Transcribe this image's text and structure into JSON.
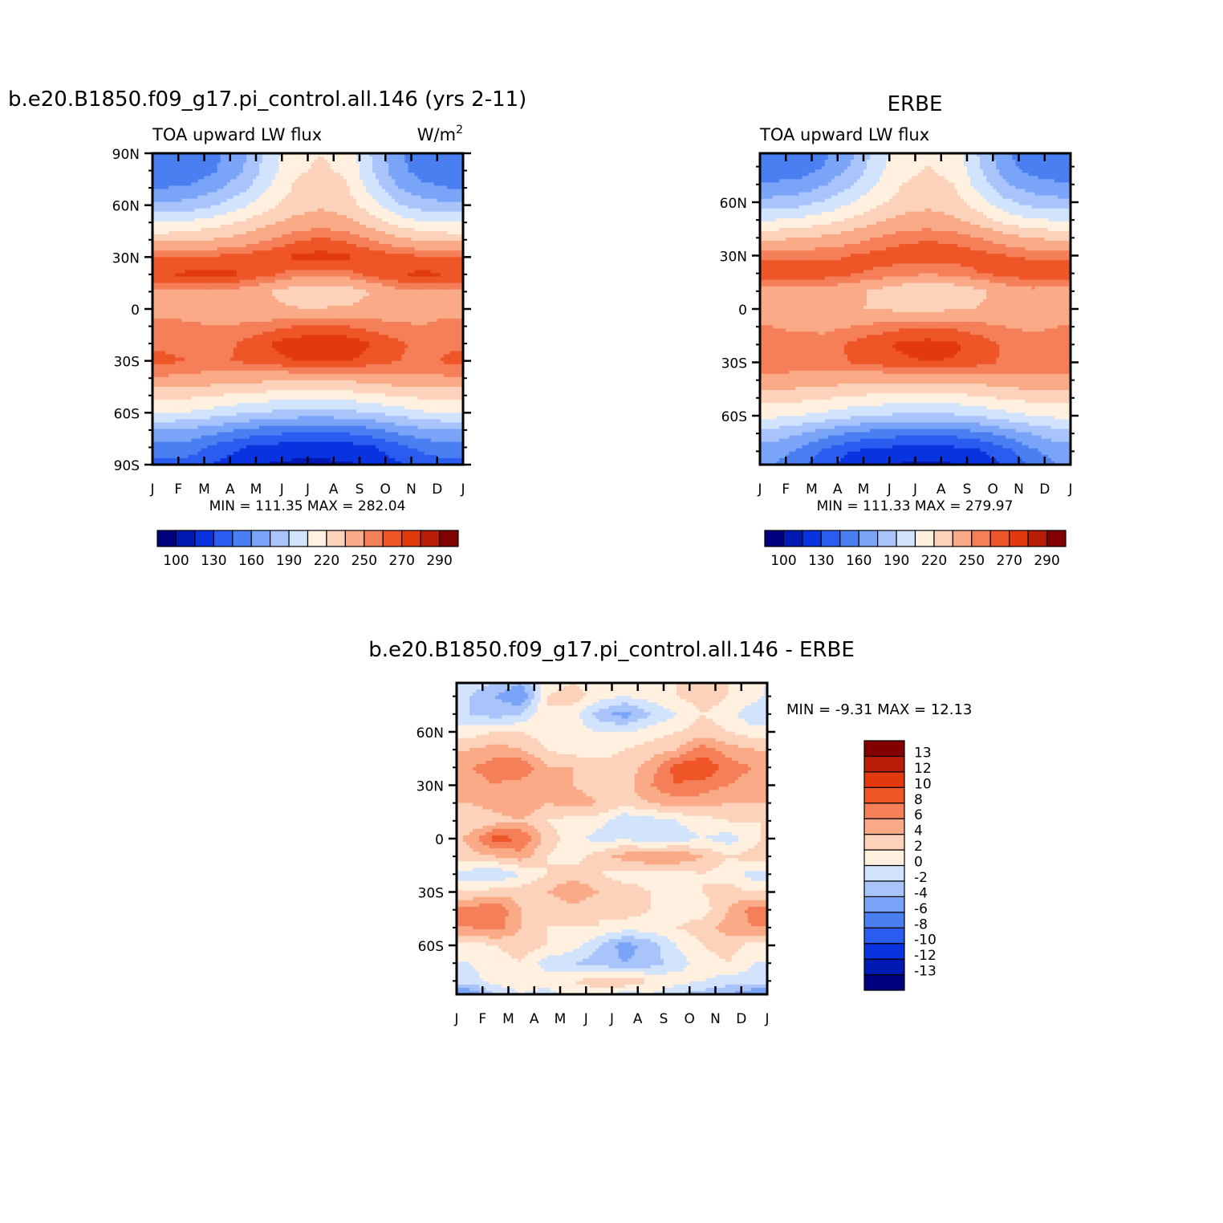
{
  "chart_data": [
    {
      "type": "heatmap",
      "title": "b.e20.B1850.f09_g17.pi_control.all.146 (yrs 2-11)",
      "subtitle_left": "TOA upward LW flux",
      "units": "W/m",
      "units_sup": "2",
      "x_tick_labels": [
        "J",
        "F",
        "M",
        "A",
        "M",
        "J",
        "J",
        "A",
        "S",
        "O",
        "N",
        "D",
        "J"
      ],
      "y_tick_labels": [
        "90N",
        "60N",
        "30N",
        "0",
        "30S",
        "60S",
        "90S"
      ],
      "y_tick_values": [
        90,
        60,
        30,
        0,
        -30,
        -60,
        -90
      ],
      "ylim": [
        -90,
        90
      ],
      "min_max_text": "MIN = 111.35 MAX = 282.04",
      "min": 111.35,
      "max": 282.04,
      "colorbar": {
        "orientation": "horizontal",
        "levels": [
          100,
          115,
          130,
          145,
          160,
          175,
          190,
          205,
          220,
          235,
          250,
          260,
          270,
          280,
          290
        ],
        "labels": [
          "100",
          "130",
          "160",
          "190",
          "220",
          "250",
          "270",
          "290"
        ],
        "colors": [
          "#00007f",
          "#0019b3",
          "#0a33e0",
          "#2a5cf0",
          "#4a7ff2",
          "#7aa4f7",
          "#a8c4fa",
          "#d1e3fd",
          "#fff0e0",
          "#fcd2bb",
          "#faaa87",
          "#f47f59",
          "#ee5527",
          "#e23a0d",
          "#b81e05",
          "#820000"
        ]
      },
      "field": {
        "lat": [
          -90,
          -80,
          -70,
          -60,
          -50,
          -40,
          -30,
          -20,
          -10,
          0,
          10,
          20,
          30,
          40,
          50,
          60,
          70,
          80,
          90
        ],
        "months": [
          "J",
          "F",
          "M",
          "A",
          "M",
          "J",
          "J",
          "A",
          "S",
          "O",
          "N",
          "D"
        ],
        "values": [
          [
            140,
            138,
            128,
            118,
            114,
            112,
            112,
            113,
            118,
            128,
            136,
            140
          ],
          [
            155,
            152,
            140,
            130,
            125,
            122,
            121,
            123,
            128,
            140,
            150,
            155
          ],
          [
            175,
            172,
            165,
            158,
            152,
            150,
            149,
            150,
            156,
            165,
            172,
            175
          ],
          [
            205,
            203,
            198,
            192,
            188,
            185,
            184,
            186,
            190,
            197,
            203,
            205
          ],
          [
            225,
            223,
            220,
            217,
            214,
            212,
            212,
            213,
            217,
            221,
            224,
            225
          ],
          [
            248,
            246,
            244,
            242,
            240,
            240,
            240,
            240,
            242,
            246,
            248,
            248
          ],
          [
            262,
            260,
            258,
            262,
            266,
            270,
            272,
            271,
            266,
            260,
            258,
            262
          ],
          [
            258,
            255,
            255,
            262,
            270,
            276,
            279,
            277,
            270,
            262,
            256,
            258
          ],
          [
            254,
            252,
            250,
            252,
            256,
            260,
            262,
            260,
            256,
            252,
            250,
            254
          ],
          [
            246,
            244,
            242,
            240,
            238,
            236,
            236,
            237,
            240,
            244,
            246,
            246
          ],
          [
            248,
            248,
            248,
            244,
            236,
            226,
            222,
            226,
            236,
            246,
            248,
            248
          ],
          [
            270,
            272,
            274,
            270,
            262,
            256,
            254,
            256,
            264,
            270,
            272,
            270
          ],
          [
            262,
            262,
            262,
            264,
            268,
            272,
            274,
            272,
            268,
            264,
            262,
            262
          ],
          [
            230,
            232,
            236,
            242,
            250,
            258,
            262,
            258,
            250,
            240,
            232,
            230
          ],
          [
            205,
            208,
            214,
            222,
            232,
            240,
            244,
            240,
            228,
            214,
            206,
            205
          ],
          [
            178,
            182,
            190,
            202,
            216,
            228,
            232,
            228,
            210,
            192,
            182,
            178
          ],
          [
            160,
            162,
            172,
            186,
            205,
            222,
            226,
            222,
            198,
            175,
            164,
            160
          ],
          [
            150,
            150,
            160,
            175,
            198,
            218,
            222,
            218,
            190,
            165,
            152,
            150
          ],
          [
            148,
            148,
            158,
            172,
            196,
            216,
            220,
            216,
            188,
            162,
            150,
            148
          ]
        ]
      }
    },
    {
      "type": "heatmap",
      "title": "ERBE",
      "subtitle_left": "TOA upward LW flux",
      "x_tick_labels": [
        "J",
        "F",
        "M",
        "A",
        "M",
        "J",
        "J",
        "A",
        "S",
        "O",
        "N",
        "D",
        "J"
      ],
      "y_tick_labels": [
        "60N",
        "30N",
        "0",
        "30S",
        "60S"
      ],
      "y_tick_values": [
        60,
        30,
        0,
        -30,
        -60
      ],
      "ylim": [
        -87.5,
        87.5
      ],
      "min_max_text": "MIN = 111.33 MAX = 279.97",
      "min": 111.33,
      "max": 279.97,
      "colorbar": {
        "orientation": "horizontal",
        "levels": [
          100,
          115,
          130,
          145,
          160,
          175,
          190,
          205,
          220,
          235,
          250,
          260,
          270,
          280,
          290
        ],
        "labels": [
          "100",
          "130",
          "160",
          "190",
          "220",
          "250",
          "270",
          "290"
        ],
        "colors": [
          "#00007f",
          "#0019b3",
          "#0a33e0",
          "#2a5cf0",
          "#4a7ff2",
          "#7aa4f7",
          "#a8c4fa",
          "#d1e3fd",
          "#fff0e0",
          "#fcd2bb",
          "#faaa87",
          "#f47f59",
          "#ee5527",
          "#e23a0d",
          "#b81e05",
          "#820000"
        ]
      },
      "field": {
        "lat": [
          -87.5,
          -80,
          -70,
          -60,
          -50,
          -40,
          -30,
          -20,
          -10,
          0,
          10,
          20,
          30,
          40,
          50,
          60,
          70,
          80,
          87.5
        ],
        "months": [
          "J",
          "F",
          "M",
          "A",
          "M",
          "J",
          "J",
          "A",
          "S",
          "O",
          "N",
          "D"
        ],
        "values": [
          [
            160,
            150,
            135,
            122,
            116,
            114,
            113,
            114,
            120,
            132,
            148,
            160
          ],
          [
            168,
            158,
            142,
            130,
            125,
            122,
            121,
            123,
            128,
            140,
            156,
            168
          ],
          [
            182,
            176,
            166,
            158,
            152,
            150,
            149,
            150,
            156,
            165,
            176,
            182
          ],
          [
            208,
            205,
            200,
            194,
            190,
            187,
            186,
            188,
            192,
            199,
            205,
            208
          ],
          [
            226,
            224,
            221,
            218,
            215,
            213,
            213,
            214,
            218,
            222,
            225,
            226
          ],
          [
            246,
            244,
            242,
            240,
            238,
            238,
            238,
            238,
            240,
            244,
            246,
            246
          ],
          [
            258,
            256,
            256,
            260,
            264,
            268,
            270,
            269,
            264,
            258,
            256,
            258
          ],
          [
            255,
            254,
            255,
            262,
            268,
            272,
            274,
            272,
            266,
            258,
            254,
            255
          ],
          [
            250,
            248,
            247,
            250,
            254,
            258,
            260,
            258,
            254,
            250,
            248,
            250
          ],
          [
            242,
            240,
            238,
            236,
            234,
            232,
            232,
            233,
            236,
            240,
            242,
            242
          ],
          [
            246,
            245,
            244,
            240,
            232,
            224,
            220,
            224,
            232,
            242,
            246,
            246
          ],
          [
            266,
            268,
            266,
            262,
            258,
            254,
            252,
            254,
            260,
            264,
            268,
            266
          ],
          [
            258,
            258,
            258,
            260,
            264,
            266,
            268,
            266,
            264,
            260,
            258,
            258
          ],
          [
            232,
            234,
            238,
            244,
            250,
            256,
            258,
            256,
            250,
            242,
            234,
            232
          ],
          [
            205,
            208,
            214,
            222,
            232,
            240,
            242,
            238,
            228,
            214,
            206,
            205
          ],
          [
            180,
            184,
            192,
            204,
            216,
            226,
            230,
            226,
            210,
            194,
            184,
            180
          ],
          [
            162,
            164,
            174,
            188,
            205,
            220,
            224,
            220,
            198,
            176,
            166,
            162
          ],
          [
            150,
            150,
            160,
            176,
            198,
            216,
            220,
            216,
            190,
            166,
            152,
            150
          ],
          [
            148,
            148,
            158,
            172,
            196,
            214,
            218,
            214,
            188,
            162,
            150,
            148
          ]
        ]
      }
    },
    {
      "type": "heatmap",
      "title": "b.e20.B1850.f09_g17.pi_control.all.146 - ERBE",
      "x_tick_labels": [
        "J",
        "F",
        "M",
        "A",
        "M",
        "J",
        "J",
        "A",
        "S",
        "O",
        "N",
        "D",
        "J"
      ],
      "y_tick_labels": [
        "60N",
        "30N",
        "0",
        "30S",
        "60S"
      ],
      "y_tick_values": [
        60,
        30,
        0,
        -30,
        -60
      ],
      "ylim": [
        -87.5,
        87.5
      ],
      "min_max_text": "MIN = -9.31 MAX = 12.13",
      "min": -9.31,
      "max": 12.13,
      "colorbar": {
        "orientation": "vertical",
        "levels": [
          -13,
          -12,
          -10,
          -8,
          -6,
          -4,
          -2,
          0,
          2,
          4,
          6,
          8,
          10,
          12,
          13
        ],
        "labels": [
          "13",
          "12",
          "10",
          "8",
          "6",
          "4",
          "2",
          "0",
          "-2",
          "-4",
          "-6",
          "-8",
          "-10",
          "-12",
          "-13"
        ],
        "colors": [
          "#00007f",
          "#0019b3",
          "#0a33e0",
          "#2a5cf0",
          "#4a7ff2",
          "#7aa4f7",
          "#a8c4fa",
          "#d1e3fd",
          "#fff0e0",
          "#fcd2bb",
          "#faaa87",
          "#f47f59",
          "#ee5527",
          "#e23a0d",
          "#b81e05",
          "#820000"
        ]
      },
      "field": {
        "lat": [
          -87.5,
          -80,
          -70,
          -60,
          -50,
          -40,
          -30,
          -20,
          -10,
          0,
          10,
          20,
          30,
          40,
          50,
          60,
          70,
          80,
          87.5
        ],
        "months": [
          "J",
          "F",
          "M",
          "A",
          "M",
          "J",
          "J",
          "A",
          "S",
          "O",
          "N",
          "D"
        ],
        "values": [
          [
            -6,
            -2,
            0,
            -1,
            1,
            1,
            -1,
            0,
            -2,
            -3,
            -4,
            -6
          ],
          [
            -1,
            1,
            1,
            1,
            2,
            3,
            4,
            2,
            1,
            0,
            -1,
            -1
          ],
          [
            0,
            1,
            2,
            -1,
            -2,
            -3,
            -4,
            -3,
            -1,
            1,
            2,
            0
          ],
          [
            1,
            2,
            3,
            2,
            1,
            -2,
            -5,
            -3,
            0,
            2,
            3,
            1
          ],
          [
            6,
            7,
            4,
            2,
            2,
            2,
            1,
            1,
            2,
            3,
            5,
            6
          ],
          [
            7,
            8,
            4,
            2,
            3,
            2,
            3,
            2,
            1,
            1,
            4,
            7
          ],
          [
            2,
            3,
            3,
            4,
            6,
            4,
            3,
            2,
            1,
            2,
            3,
            2
          ],
          [
            -1,
            -2,
            0,
            2,
            3,
            2,
            1,
            1,
            1,
            2,
            1,
            -1
          ],
          [
            3,
            4,
            5,
            2,
            1,
            3,
            5,
            6,
            6,
            4,
            2,
            3
          ],
          [
            5,
            9,
            8,
            3,
            1,
            -1,
            0,
            -2,
            -1,
            0,
            -1,
            1
          ],
          [
            2,
            3,
            4,
            2,
            1,
            1,
            -2,
            -1,
            0,
            1,
            2,
            2
          ],
          [
            4,
            5,
            6,
            4,
            5,
            4,
            3,
            4,
            5,
            5,
            4,
            4
          ],
          [
            5,
            6,
            5,
            4,
            4,
            3,
            3,
            6,
            8,
            7,
            6,
            5
          ],
          [
            6,
            7,
            8,
            4,
            4,
            3,
            3,
            5,
            9,
            10,
            7,
            6
          ],
          [
            4,
            5,
            4,
            2,
            1,
            1,
            2,
            3,
            4,
            7,
            5,
            4
          ],
          [
            1,
            2,
            2,
            1,
            1,
            0,
            0,
            1,
            2,
            3,
            2,
            1
          ],
          [
            -2,
            -3,
            -2,
            2,
            1,
            -3,
            -5,
            -2,
            0,
            2,
            1,
            -2
          ],
          [
            -2,
            -4,
            -6,
            2,
            3,
            1,
            0,
            1,
            2,
            3,
            2,
            1
          ],
          [
            -1,
            -2,
            -4,
            1,
            2,
            1,
            0,
            1,
            2,
            3,
            2,
            1
          ]
        ]
      }
    }
  ]
}
